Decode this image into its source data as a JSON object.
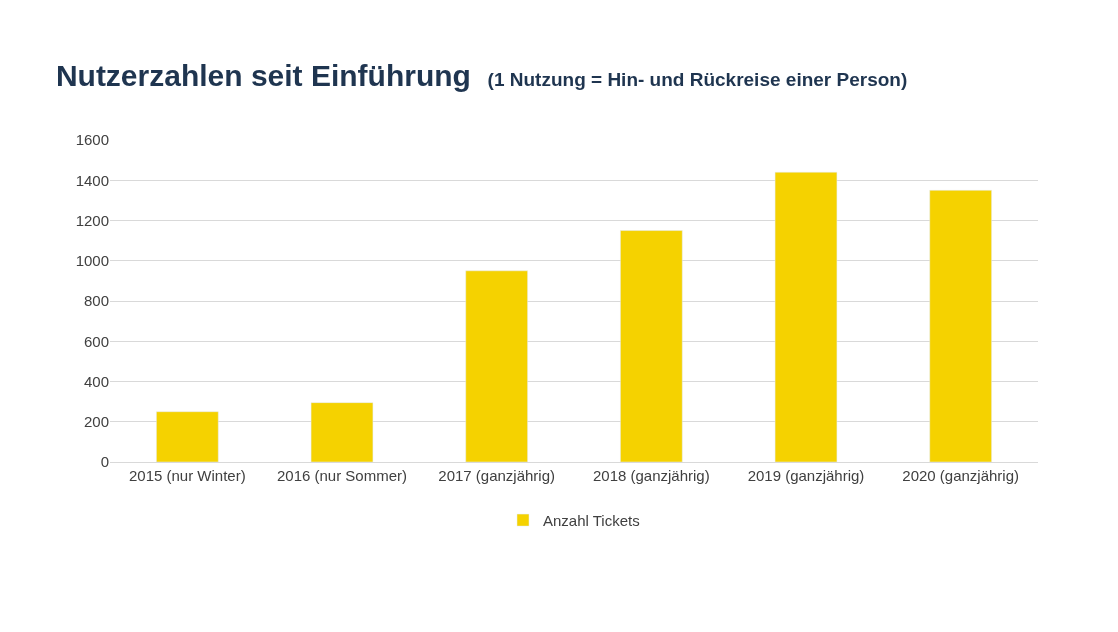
{
  "chart_data": {
    "type": "bar",
    "title": "Nutzerzahlen seit Einführung",
    "subtitle": "(1 Nutzung = Hin- und Rückreise einer Person)",
    "categories": [
      "2015 (nur Winter)",
      "2016 (nur Sommer)",
      "2017 (ganzjährig)",
      "2018 (ganzjährig)",
      "2019 (ganzjährig)",
      "2020 (ganzjährig)"
    ],
    "series": [
      {
        "name": "Anzahl Tickets",
        "color": "#f5d200",
        "values": [
          250,
          295,
          950,
          1150,
          1440,
          1350
        ]
      }
    ],
    "ylim": [
      0,
      1600
    ],
    "yticks": [
      0,
      200,
      400,
      600,
      800,
      1000,
      1200,
      1400,
      1600
    ],
    "grid": "y",
    "legend": "bottom"
  }
}
